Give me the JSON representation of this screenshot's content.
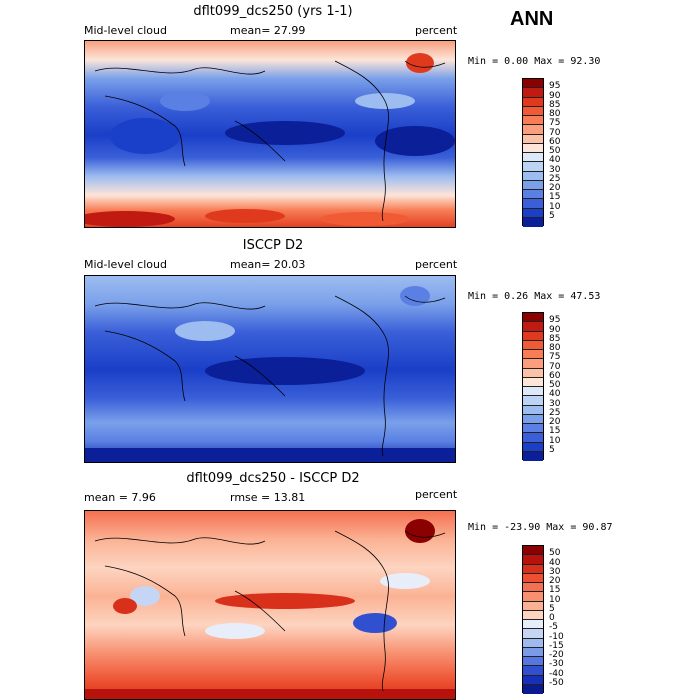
{
  "header": {
    "season": "ANN"
  },
  "panels": [
    {
      "title": "dflt099_dcs250 (yrs 1-1)",
      "left_label": "Mid-level cloud",
      "stat_text": "mean=  27.99",
      "units": "percent",
      "minmax": "Min =   0.00 Max =  92.30",
      "colorbar": {
        "labels": [
          "95",
          "90",
          "85",
          "80",
          "75",
          "70",
          "60",
          "50",
          "40",
          "30",
          "25",
          "20",
          "15",
          "10",
          "5"
        ],
        "colors": [
          "#8b0000",
          "#c11a10",
          "#e03a1e",
          "#f05a35",
          "#f77d55",
          "#fa9e7e",
          "#fcc2a8",
          "#fde5d8",
          "#dde9f8",
          "#bcd3f3",
          "#9dbcf0",
          "#7aa0ea",
          "#5a80e4",
          "#3a5fd8",
          "#1a3fc8",
          "#0a1f98"
        ]
      }
    },
    {
      "title": "ISCCP D2",
      "left_label": "Mid-level cloud",
      "stat_text": "mean=  20.03",
      "units": "percent",
      "minmax": "Min =   0.26 Max =  47.53",
      "colorbar": {
        "labels": [
          "95",
          "90",
          "85",
          "80",
          "75",
          "70",
          "60",
          "50",
          "40",
          "30",
          "25",
          "20",
          "15",
          "10",
          "5"
        ],
        "colors": [
          "#8b0000",
          "#c11a10",
          "#e03a1e",
          "#f05a35",
          "#f77d55",
          "#fa9e7e",
          "#fcc2a8",
          "#fde5d8",
          "#dde9f8",
          "#bcd3f3",
          "#9dbcf0",
          "#7aa0ea",
          "#5a80e4",
          "#3a5fd8",
          "#1a3fc8",
          "#0a1f98"
        ]
      }
    },
    {
      "title": "dflt099_dcs250 - ISCCP D2",
      "left_label": "mean =    7.96",
      "stat_text": "rmse =  13.81",
      "units": "percent",
      "minmax": "Min = -23.90 Max =  90.87",
      "colorbar": {
        "labels": [
          "50",
          "40",
          "30",
          "20",
          "15",
          "10",
          "5",
          "0",
          "-5",
          "-10",
          "-15",
          "-20",
          "-30",
          "-40",
          "-50"
        ],
        "colors": [
          "#8b0000",
          "#b8120c",
          "#d8301a",
          "#ec5030",
          "#f47050",
          "#f89070",
          "#fbb294",
          "#fdd4c0",
          "#e8eef9",
          "#c4d6f4",
          "#9fbaee",
          "#7a9ce8",
          "#5478e0",
          "#3050d0",
          "#1830b8",
          "#0a1a90"
        ]
      }
    }
  ]
}
